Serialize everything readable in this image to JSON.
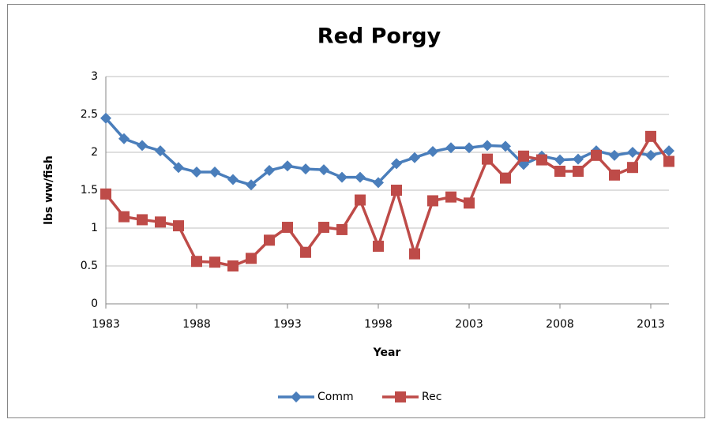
{
  "chart_data": {
    "type": "line",
    "title": "Red Porgy",
    "xlabel": "Year",
    "ylabel": "lbs ww/fish",
    "x": [
      1983,
      1984,
      1985,
      1986,
      1987,
      1988,
      1989,
      1990,
      1991,
      1992,
      1993,
      1994,
      1995,
      1996,
      1997,
      1998,
      1999,
      2000,
      2001,
      2002,
      2003,
      2004,
      2005,
      2006,
      2007,
      2008,
      2009,
      2010,
      2011,
      2012,
      2013,
      2014
    ],
    "series": [
      {
        "name": "Comm",
        "color": "#4a7ebb",
        "marker": "diamond",
        "values": [
          2.45,
          2.18,
          2.09,
          2.02,
          1.8,
          1.74,
          1.74,
          1.64,
          1.57,
          1.76,
          1.82,
          1.78,
          1.77,
          1.67,
          1.67,
          1.6,
          1.85,
          1.93,
          2.01,
          2.06,
          2.06,
          2.09,
          2.08,
          1.84,
          1.95,
          1.9,
          1.91,
          2.02,
          1.96,
          2.0,
          1.96,
          2.02
        ]
      },
      {
        "name": "Rec",
        "color": "#be4b48",
        "marker": "square",
        "values": [
          1.45,
          1.15,
          1.11,
          1.08,
          1.03,
          0.56,
          0.55,
          0.5,
          0.6,
          0.84,
          1.01,
          0.68,
          1.01,
          0.98,
          1.37,
          0.76,
          1.5,
          0.66,
          1.36,
          1.41,
          1.33,
          1.91,
          1.66,
          1.95,
          1.9,
          1.75,
          1.75,
          1.96,
          1.7,
          1.8,
          2.21,
          1.88
        ]
      }
    ],
    "xlim": [
      1983,
      2014
    ],
    "xticks": [
      1983,
      1988,
      1993,
      1998,
      2003,
      2008,
      2013
    ],
    "ylim": [
      0,
      3
    ],
    "yticks": [
      0,
      0.5,
      1,
      1.5,
      2,
      2.5,
      3
    ],
    "grid": true,
    "legend": "bottom"
  }
}
